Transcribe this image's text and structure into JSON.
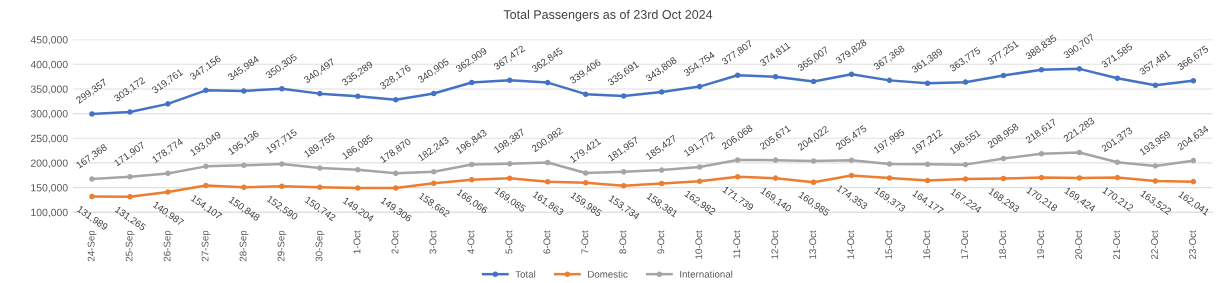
{
  "chart_data": {
    "type": "line",
    "title": "Total Passengers as of 23rd Oct 2024",
    "categories": [
      "24-Sep",
      "25-Sep",
      "26-Sep",
      "27-Sep",
      "28-Sep",
      "29-Sep",
      "30-Sep",
      "1-Oct",
      "2-Oct",
      "3-Oct",
      "4-Oct",
      "5-Oct",
      "6-Oct",
      "7-Oct",
      "8-Oct",
      "9-Oct",
      "10-Oct",
      "11-Oct",
      "12-Oct",
      "13-Oct",
      "14-Oct",
      "15-Oct",
      "16-Oct",
      "17-Oct",
      "18-Oct",
      "19-Oct",
      "20-Oct",
      "21-Oct",
      "22-Oct",
      "23-Oct"
    ],
    "series": [
      {
        "name": "Total",
        "color": "#4472c4",
        "values": [
          299357,
          303172,
          319761,
          347156,
          345984,
          350305,
          340497,
          335289,
          328176,
          340905,
          362909,
          367472,
          362845,
          339406,
          335691,
          343808,
          354754,
          377807,
          374811,
          365007,
          379828,
          367368,
          361389,
          363775,
          377251,
          388835,
          390707,
          371585,
          357481,
          366675
        ],
        "value_labels": [
          "299,357",
          "303,172",
          "319,761",
          "347,156",
          "345,984",
          "350,305",
          "340,497",
          "335,289",
          "328,176",
          "340,905",
          "362,909",
          "367,472",
          "362,845",
          "339,406",
          "335,691",
          "343,808",
          "354,754",
          "377,807",
          "374,811",
          "365,007",
          "379,828",
          "367,368",
          "361,389",
          "363,775",
          "377,251",
          "388,835",
          "390,707",
          "371,585",
          "357,481",
          "366,675"
        ]
      },
      {
        "name": "Domestic",
        "color": "#ed7d31",
        "values": [
          131989,
          131265,
          140987,
          154107,
          150848,
          152590,
          150742,
          149204,
          149306,
          158662,
          166066,
          169085,
          161863,
          159985,
          153734,
          158381,
          162982,
          171739,
          169140,
          160985,
          174353,
          169373,
          164177,
          167224,
          168293,
          170218,
          169424,
          170212,
          163522,
          162041
        ],
        "value_labels": [
          "131,989",
          "131,265",
          "140,987",
          "154,107",
          "150,848",
          "152,590",
          "150,742",
          "149,204",
          "149,306",
          "158,662",
          "166,066",
          "169,085",
          "161,863",
          "159,985",
          "153,734",
          "158,381",
          "162,982",
          "171,739",
          "169,140",
          "160,985",
          "174,353",
          "169,373",
          "164,177",
          "167,224",
          "168,293",
          "170,218",
          "169,424",
          "170,212",
          "163,522",
          "162,041"
        ]
      },
      {
        "name": "International",
        "color": "#a5a5a5",
        "values": [
          167368,
          171907,
          178774,
          193049,
          195136,
          197715,
          189755,
          186085,
          178870,
          182243,
          196843,
          198387,
          200982,
          179421,
          181957,
          185427,
          191772,
          206068,
          205671,
          204022,
          205475,
          197995,
          197212,
          196551,
          208958,
          218617,
          221283,
          201373,
          193959,
          204634
        ],
        "value_labels": [
          "167,368",
          "171,907",
          "178,774",
          "193,049",
          "195,136",
          "197,715",
          "189,755",
          "186,085",
          "178,870",
          "182,243",
          "196,843",
          "198,387",
          "200,982",
          "179,421",
          "181,957",
          "185,427",
          "191,772",
          "206,068",
          "205,671",
          "204,022",
          "205,475",
          "197,995",
          "197,212",
          "196,551",
          "208,958",
          "218,617",
          "221,283",
          "201,373",
          "193,959",
          "204,634"
        ]
      }
    ],
    "ylim": [
      100000,
      450000
    ],
    "yticks": [
      {
        "value": 100000,
        "label": "100,000"
      },
      {
        "value": 150000,
        "label": "150,000"
      },
      {
        "value": 200000,
        "label": "200,000"
      },
      {
        "value": 250000,
        "label": "250,000"
      },
      {
        "value": 300000,
        "label": "300,000"
      },
      {
        "value": 350000,
        "label": "350,000"
      },
      {
        "value": 400000,
        "label": "400,000"
      },
      {
        "value": 450000,
        "label": "450,000"
      }
    ],
    "grid": "y",
    "legend": "bottom",
    "marker": "circle",
    "line_style": "solid"
  }
}
